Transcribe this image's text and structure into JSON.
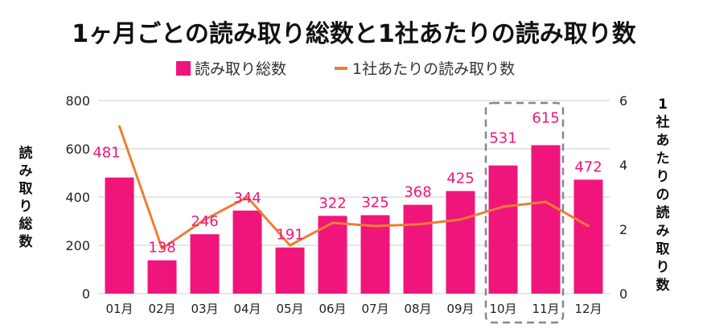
{
  "chart_data": {
    "type": "bar",
    "title": "1ヶ月ごとの読み取り総数と1社あたりの読み取り数",
    "categories": [
      "01月",
      "02月",
      "03月",
      "04月",
      "05月",
      "06月",
      "07月",
      "08月",
      "09月",
      "10月",
      "11月",
      "12月"
    ],
    "series": [
      {
        "name": "読み取り総数",
        "type": "bar",
        "axis": "left",
        "color": "#f0157a",
        "values": [
          481,
          138,
          246,
          344,
          191,
          322,
          325,
          368,
          425,
          531,
          615,
          472
        ]
      },
      {
        "name": "1社あたりの読み取り数",
        "type": "line",
        "axis": "right",
        "color": "#ef7d33",
        "values": [
          5.2,
          1.4,
          2.3,
          3.0,
          1.5,
          2.2,
          2.1,
          2.15,
          2.3,
          2.7,
          2.85,
          2.1
        ]
      }
    ],
    "ylabel": "読み取り総数",
    "y2label": "1社あたりの読み取り数",
    "ylim": [
      0,
      800
    ],
    "y2lim": [
      0,
      6
    ],
    "yticks": [
      0,
      200,
      400,
      600,
      800
    ],
    "y2ticks": [
      0,
      2,
      4,
      6
    ],
    "grid": true,
    "legend": "top-center",
    "highlight": {
      "categories": [
        "10月",
        "11月"
      ],
      "style": "dashed-box"
    },
    "gridColor": "#cccccc",
    "highlightColor": "#888888"
  }
}
